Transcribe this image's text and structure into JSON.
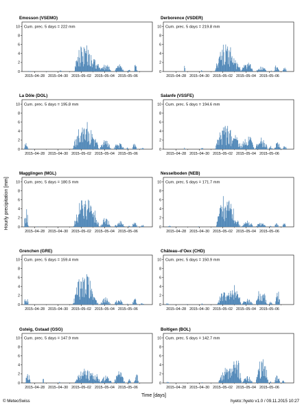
{
  "chart_data": {
    "type": "bar",
    "ylabel": "Hourly precipitation [mm]",
    "xlabel": "Time [days]",
    "ylim": [
      0,
      11
    ],
    "yticks": [
      0,
      2,
      4,
      6,
      8,
      10
    ],
    "x_tick_labels": [
      "2015–04–28",
      "2015–04–30",
      "2015–05–02",
      "2015–05–04",
      "2015–05–06"
    ],
    "bar_color": "#4a83b5",
    "panels": [
      {
        "title": "Emosson (VSEMO)",
        "cum_label": "Cum. prec. 5 days = 222 mm",
        "events": [
          [
            -0.5,
            0.15,
            0.2,
            0
          ],
          [
            1.1,
            0.05,
            0.1,
            1
          ],
          [
            2.2,
            0.1,
            0.3,
            2
          ],
          [
            4.25,
            0.9,
            6.8,
            3
          ],
          [
            5.1,
            0.55,
            3.0,
            4
          ],
          [
            6.05,
            0.5,
            1.8,
            5
          ],
          [
            7.25,
            0.4,
            1.6,
            6
          ],
          [
            8.05,
            0.15,
            0.5,
            7
          ],
          [
            8.65,
            0.15,
            2.2,
            8
          ]
        ]
      },
      {
        "title": "Derborence (VSDER)",
        "cum_label": "Cum. prec. 5 days = 219.8 mm",
        "events": [
          [
            0.7,
            0.05,
            1.7,
            11
          ],
          [
            2.15,
            0.1,
            0.3,
            12
          ],
          [
            4.25,
            0.95,
            6.6,
            13
          ],
          [
            5.05,
            0.5,
            2.8,
            14
          ],
          [
            6.1,
            0.55,
            2.1,
            15
          ],
          [
            7.3,
            0.45,
            1.5,
            16
          ],
          [
            8.15,
            0.1,
            0.3,
            17
          ],
          [
            8.6,
            0.25,
            1.6,
            18
          ],
          [
            9.3,
            0.2,
            0.9,
            19
          ]
        ]
      },
      {
        "title": "La Dôle (DOL)",
        "cum_label": "Cum. prec. 5 days = 195.8 mm",
        "events": [
          [
            -0.75,
            0.2,
            1.5,
            21
          ],
          [
            -0.2,
            0.05,
            0.2,
            22
          ],
          [
            4.25,
            1.0,
            6.8,
            23
          ],
          [
            5.05,
            0.45,
            2.7,
            24
          ],
          [
            6.05,
            0.5,
            2.1,
            25
          ],
          [
            7.2,
            0.45,
            1.6,
            26
          ],
          [
            7.95,
            0.1,
            0.4,
            27
          ],
          [
            8.55,
            0.2,
            1.5,
            28
          ],
          [
            9.2,
            0.15,
            0.4,
            29
          ]
        ]
      },
      {
        "title": "Salanfe (VSSFE)",
        "cum_label": "Cum. prec. 5 days = 194.6 mm",
        "events": [
          [
            0.7,
            0.05,
            0.4,
            31
          ],
          [
            2.2,
            0.15,
            0.5,
            32
          ],
          [
            4.25,
            0.95,
            5.5,
            33
          ],
          [
            5.1,
            0.45,
            3.2,
            34
          ],
          [
            6.1,
            0.6,
            3.4,
            35
          ],
          [
            7.3,
            0.55,
            2.6,
            36
          ],
          [
            8.1,
            0.15,
            0.8,
            37
          ],
          [
            8.7,
            0.3,
            1.7,
            38
          ],
          [
            9.3,
            0.2,
            0.8,
            39
          ]
        ]
      },
      {
        "title": "Magglingen (MGL)",
        "cum_label": "Cum. prec. 5 days = 180.5 mm",
        "events": [
          [
            -0.75,
            0.2,
            4.1,
            41
          ],
          [
            0.2,
            0.05,
            0.2,
            42
          ],
          [
            4.25,
            0.95,
            7.2,
            43
          ],
          [
            5.05,
            0.45,
            4.1,
            44
          ],
          [
            6.05,
            0.45,
            2.1,
            45
          ],
          [
            7.25,
            0.45,
            1.4,
            46
          ],
          [
            8.1,
            0.1,
            0.3,
            47
          ],
          [
            8.55,
            0.25,
            1.3,
            48
          ],
          [
            9.2,
            0.15,
            0.6,
            49
          ]
        ]
      },
      {
        "title": "Nesselboden (NEB)",
        "cum_label": "Cum. prec. 5 days = 171.7 mm",
        "events": [
          [
            -0.6,
            0.15,
            0.3,
            51
          ],
          [
            1.9,
            0.05,
            0.2,
            52
          ],
          [
            4.3,
            0.9,
            7.6,
            53
          ],
          [
            5.05,
            0.45,
            2.3,
            54
          ],
          [
            6.1,
            0.5,
            1.5,
            55
          ],
          [
            7.25,
            0.45,
            1.0,
            56
          ],
          [
            8.1,
            0.1,
            0.3,
            57
          ],
          [
            8.6,
            0.2,
            0.9,
            58
          ],
          [
            9.25,
            0.15,
            1.0,
            59
          ]
        ]
      },
      {
        "title": "Grenchen (GRE)",
        "cum_label": "Cum. prec. 5 days = 159.4 mm",
        "events": [
          [
            -0.75,
            0.2,
            1.7,
            61
          ],
          [
            4.25,
            1.0,
            7.4,
            62
          ],
          [
            5.05,
            0.4,
            2.0,
            63
          ],
          [
            6.05,
            0.45,
            1.7,
            64
          ],
          [
            7.2,
            0.4,
            1.3,
            65
          ],
          [
            7.95,
            0.05,
            0.2,
            66
          ],
          [
            8.55,
            0.2,
            1.7,
            67
          ],
          [
            9.2,
            0.15,
            0.4,
            68
          ]
        ]
      },
      {
        "title": "Château–d’Oex (CHD)",
        "cum_label": "Cum. prec. 5 days = 150.9 mm",
        "events": [
          [
            -0.75,
            0.15,
            0.5,
            71
          ],
          [
            0.9,
            0.05,
            0.2,
            72
          ],
          [
            2.2,
            0.1,
            0.3,
            73
          ],
          [
            4.3,
            0.8,
            3.8,
            74
          ],
          [
            5.05,
            0.5,
            4.4,
            75
          ],
          [
            6.1,
            0.5,
            1.3,
            76
          ],
          [
            7.3,
            0.5,
            3.9,
            77
          ],
          [
            8.1,
            0.15,
            0.8,
            78
          ],
          [
            8.7,
            0.2,
            3.4,
            79
          ]
        ]
      },
      {
        "title": "Gsteig, Gstaad (GSG)",
        "cum_label": "Cum. prec. 5 days = 147.9 mm",
        "events": [
          [
            -0.6,
            0.25,
            2.3,
            81
          ],
          [
            0.7,
            0.05,
            1.9,
            82
          ],
          [
            2.1,
            0.1,
            0.3,
            83
          ],
          [
            4.3,
            0.9,
            3.2,
            84
          ],
          [
            5.1,
            0.5,
            2.8,
            85
          ],
          [
            6.1,
            0.5,
            1.8,
            86
          ],
          [
            7.25,
            0.5,
            2.8,
            87
          ],
          [
            8.1,
            0.15,
            0.9,
            88
          ],
          [
            8.7,
            0.2,
            2.6,
            89
          ]
        ]
      },
      {
        "title": "Boltigen (BOL)",
        "cum_label": "Cum. prec. 5 days = 142.7 mm",
        "events": [
          [
            -0.75,
            0.15,
            0.3,
            91
          ],
          [
            2.2,
            0.05,
            0.2,
            92
          ],
          [
            4.35,
            0.75,
            3.8,
            93
          ],
          [
            5.1,
            0.5,
            6.2,
            94
          ],
          [
            6.1,
            0.45,
            1.6,
            95
          ],
          [
            7.35,
            0.55,
            5.8,
            96
          ],
          [
            8.05,
            0.1,
            0.5,
            97
          ],
          [
            8.65,
            0.25,
            2.1,
            98
          ],
          [
            9.2,
            0.15,
            0.6,
            99
          ]
        ]
      }
    ]
  },
  "footer": {
    "left": "© MeteoSwiss",
    "right": "hyeto::hyeto v1.0 / 09.11.2015 10:27"
  }
}
